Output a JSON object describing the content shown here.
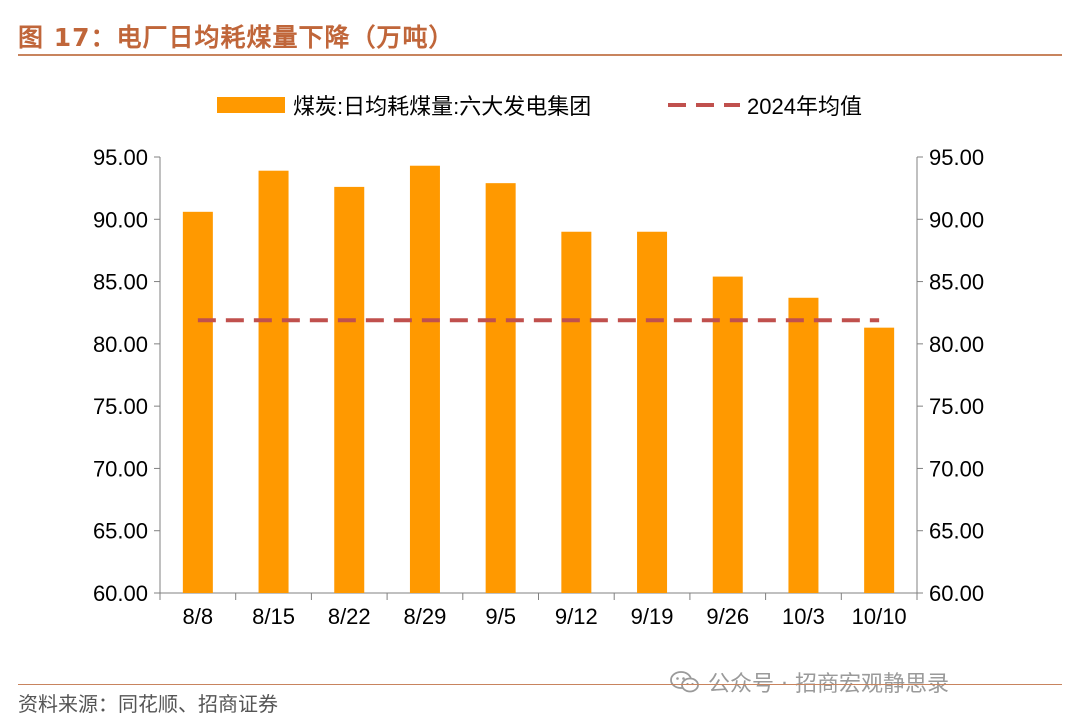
{
  "figure": {
    "title": "图 17：电厂日均耗煤量下降（万吨）",
    "source": "资料来源：同花顺、招商证券",
    "watermark": "公众号 · 招商宏观静思录"
  },
  "colors": {
    "bar": "#FF9900",
    "avg_line": "#C0504D",
    "title": "#C0663A",
    "axis": "#808080",
    "text": "#000000"
  },
  "chart_data": {
    "type": "bar",
    "title": "",
    "xlabel": "",
    "ylabel": "",
    "categories": [
      "8/8",
      "8/15",
      "8/22",
      "8/29",
      "9/5",
      "9/12",
      "9/19",
      "9/26",
      "10/3",
      "10/10"
    ],
    "series": [
      {
        "name": "煤炭:日均耗煤量:六大发电集团",
        "type": "bar",
        "values": [
          90.6,
          93.9,
          92.6,
          94.3,
          92.9,
          89.0,
          89.0,
          85.4,
          83.7,
          81.3
        ]
      },
      {
        "name": "2024年均值",
        "type": "line",
        "style": "dashed",
        "values": [
          81.9,
          81.9,
          81.9,
          81.9,
          81.9,
          81.9,
          81.9,
          81.9,
          81.9,
          81.9
        ]
      }
    ],
    "ylim": [
      60,
      95
    ],
    "yticks": [
      "60.00",
      "65.00",
      "70.00",
      "75.00",
      "80.00",
      "85.00",
      "90.00",
      "95.00"
    ],
    "y2ticks": [
      "60.00",
      "65.00",
      "70.00",
      "75.00",
      "80.00",
      "85.00",
      "90.00",
      "95.00"
    ],
    "legend_position": "top-center",
    "grid": false
  }
}
